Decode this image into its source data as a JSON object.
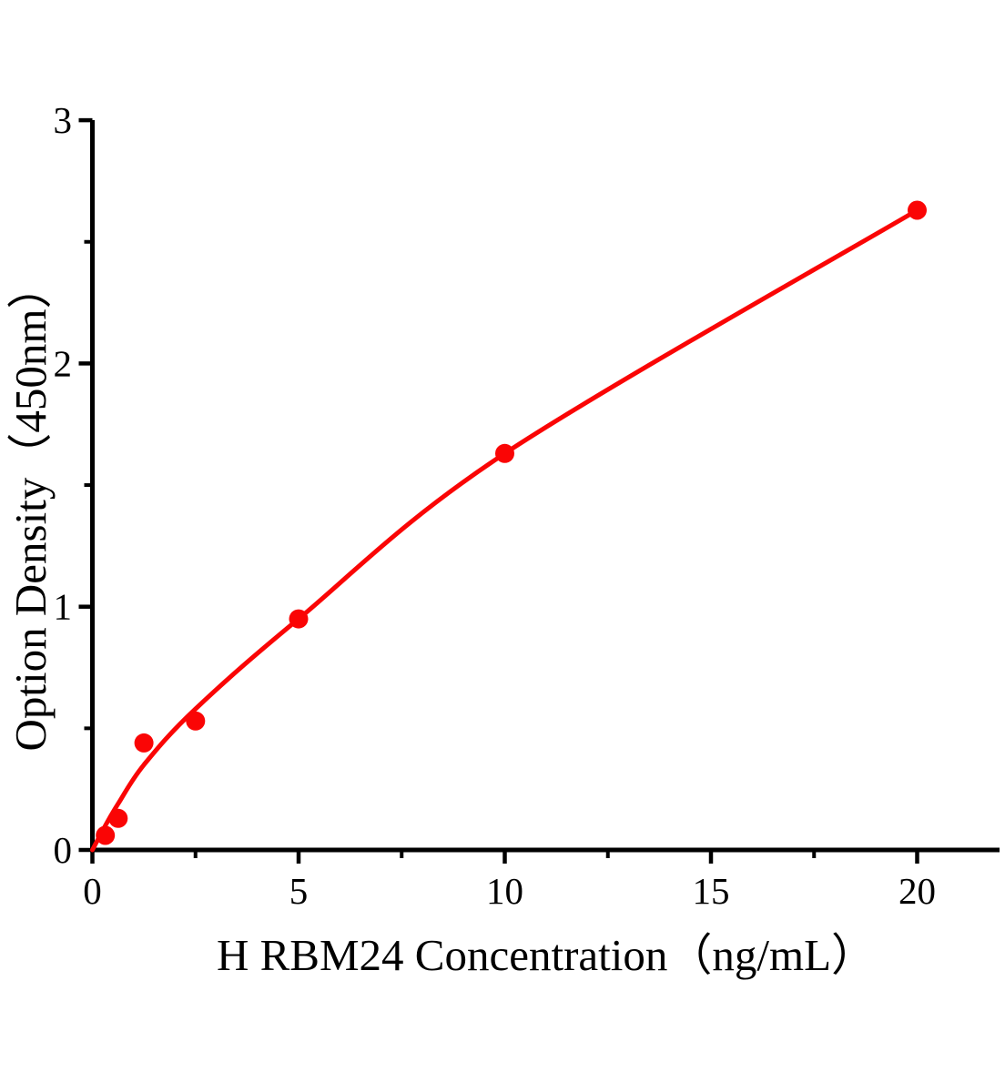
{
  "chart_data": {
    "type": "scatter",
    "title": "",
    "xlabel": "H RBM24 Concentration（ng/mL）",
    "ylabel": "Option Density（450nm）",
    "xlim": [
      0,
      22
    ],
    "ylim": [
      0,
      3
    ],
    "grid": false,
    "legend": false,
    "x": [
      0.313,
      0.625,
      1.25,
      2.5,
      5,
      10,
      20
    ],
    "y": [
      0.06,
      0.13,
      0.44,
      0.53,
      0.95,
      1.63,
      2.63
    ],
    "fit_curve": {
      "description": "smooth fitted standard curve from origin through last point",
      "knots_x": [
        0,
        0.313,
        0.625,
        1.25,
        2.5,
        5,
        10,
        20
      ],
      "knots_y": [
        0,
        0.1,
        0.19,
        0.35,
        0.58,
        0.95,
        1.63,
        2.63
      ]
    },
    "x_ticks": {
      "major": [
        0,
        5,
        10,
        15,
        20
      ],
      "minor": [
        2.5,
        7.5,
        12.5,
        17.5
      ]
    },
    "y_ticks": {
      "major": [
        0,
        1,
        2,
        3
      ],
      "minor": [
        0.5,
        1.5,
        2.5
      ]
    },
    "colors": {
      "curve": "#fa0505",
      "marker": "#fa0505",
      "axis": "#000000",
      "text": "#000000"
    }
  }
}
